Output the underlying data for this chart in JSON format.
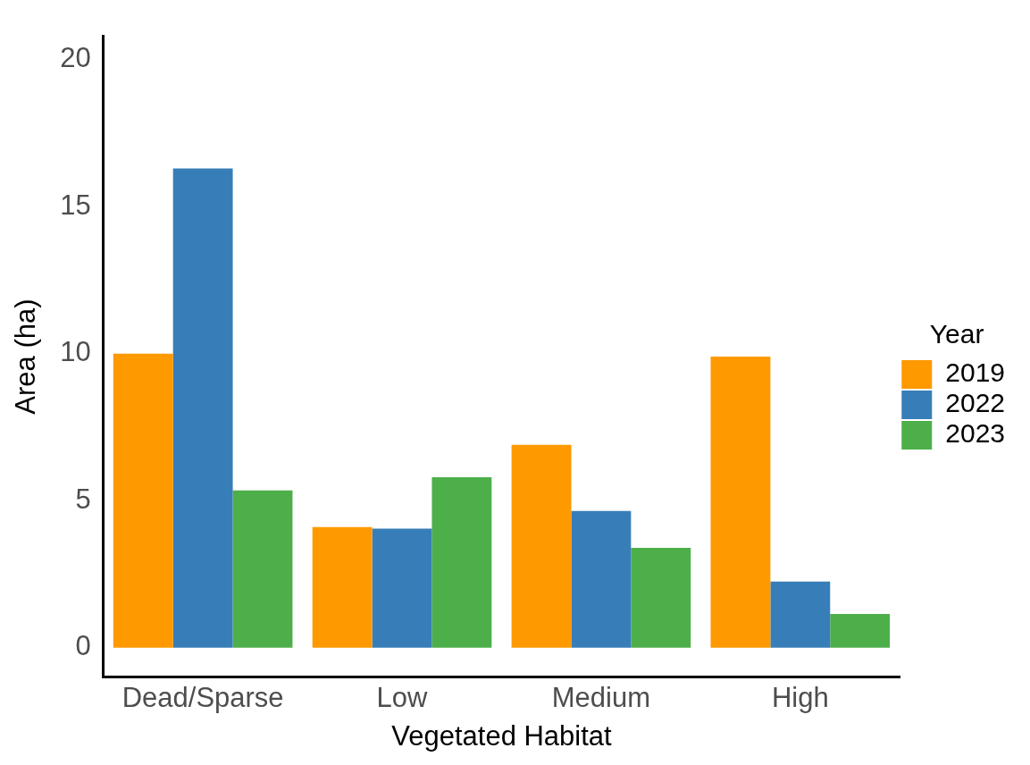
{
  "chart_data": {
    "type": "bar",
    "xlabel": "Vegetated Habitat",
    "ylabel": "Area (ha)",
    "legend_title": "Year",
    "categories": [
      "Dead/Sparse",
      "Low",
      "Medium",
      "High"
    ],
    "series": [
      {
        "name": "2019",
        "color": "#ff9900",
        "values": [
          10.0,
          4.1,
          6.9,
          9.9
        ]
      },
      {
        "name": "2022",
        "color": "#377eb8",
        "values": [
          16.3,
          4.05,
          4.65,
          2.25
        ]
      },
      {
        "name": "2023",
        "color": "#4daf4a",
        "values": [
          5.35,
          5.8,
          3.4,
          1.15
        ]
      }
    ],
    "ylim": [
      -1,
      20.8
    ],
    "yticks": [
      0,
      5,
      10,
      15,
      20
    ],
    "grid": false,
    "legend": "right"
  }
}
